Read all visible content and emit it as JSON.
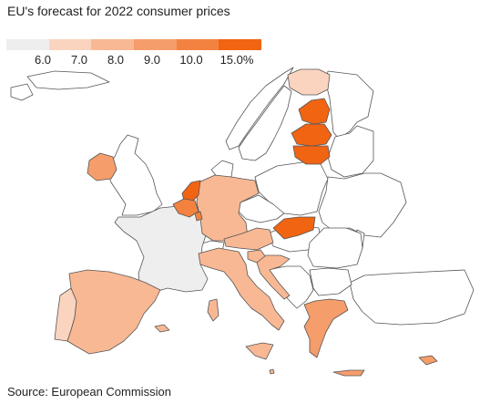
{
  "title": "EU's forecast for 2022 consumer prices",
  "source": "Source: European Commission",
  "legend": {
    "colors": [
      "#eeeeee",
      "#fbd4bf",
      "#f8b894",
      "#f59d6b",
      "#f38240",
      "#f16412"
    ],
    "labels": [
      "6.0",
      "7.0",
      "8.0",
      "9.0",
      "10.0",
      "15.0%"
    ]
  },
  "map_data": {
    "type": "choropleth",
    "metric": "EU forecast for 2022 consumer prices",
    "unit": "%",
    "class_breaks": [
      6.0,
      7.0,
      8.0,
      9.0,
      10.0,
      15.0
    ],
    "regions": [
      {
        "name": "France",
        "class": 0
      },
      {
        "name": "Portugal",
        "class": 1
      },
      {
        "name": "Spain",
        "class": 2
      },
      {
        "name": "Italy",
        "class": 2
      },
      {
        "name": "Germany",
        "class": 2
      },
      {
        "name": "Austria",
        "class": 2
      },
      {
        "name": "Slovenia",
        "class": 2
      },
      {
        "name": "Croatia",
        "class": 2
      },
      {
        "name": "Greece",
        "class": 3
      },
      {
        "name": "Ireland",
        "class": 3
      },
      {
        "name": "Belgium",
        "class": 4
      },
      {
        "name": "Netherlands",
        "class": 5
      },
      {
        "name": "Slovakia",
        "class": 5
      },
      {
        "name": "Estonia",
        "class": 5
      },
      {
        "name": "Latvia",
        "class": 5
      },
      {
        "name": "Lithuania",
        "class": 5
      },
      {
        "name": "Finland",
        "class": 1
      },
      {
        "name": "Malta",
        "class": 2
      },
      {
        "name": "Cyprus",
        "class": 3
      },
      {
        "name": "Luxembourg",
        "class": 4
      }
    ]
  }
}
